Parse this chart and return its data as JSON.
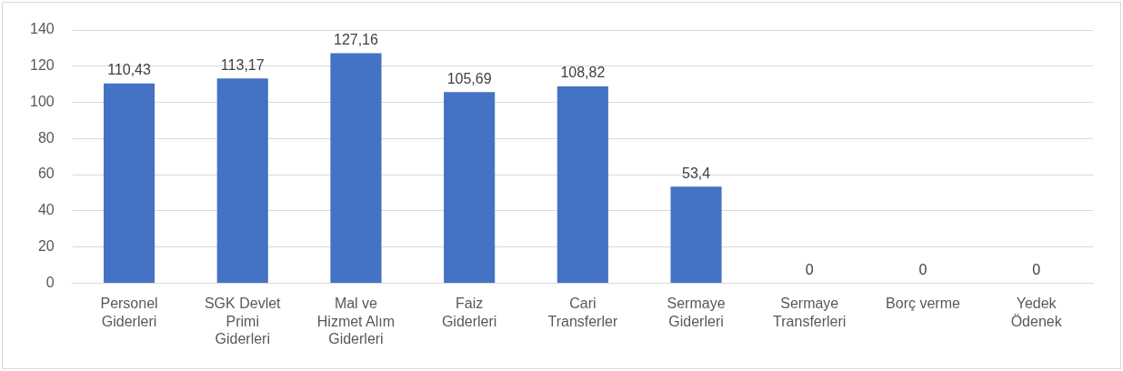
{
  "chart_data": {
    "type": "bar",
    "categories": [
      "Personel Giderleri",
      "SGK Devlet Primi Giderleri",
      "Mal ve Hizmet Alım Giderleri",
      "Faiz Giderleri",
      "Cari Transferler",
      "Sermaye Giderleri",
      "Sermaye Transferleri",
      "Borç verme",
      "Yedek Ödenek"
    ],
    "values": [
      110.43,
      113.17,
      127.16,
      105.69,
      108.82,
      53.4,
      0,
      0,
      0
    ],
    "value_labels": [
      "110,43",
      "113,17",
      "127,16",
      "105,69",
      "108,82",
      "53,4",
      "0",
      "0",
      "0"
    ],
    "color": "#4472c4",
    "ylim": [
      0,
      140
    ],
    "yticks": [
      0,
      20,
      40,
      60,
      80,
      100,
      120,
      140
    ],
    "grid": "y",
    "legend": false
  }
}
